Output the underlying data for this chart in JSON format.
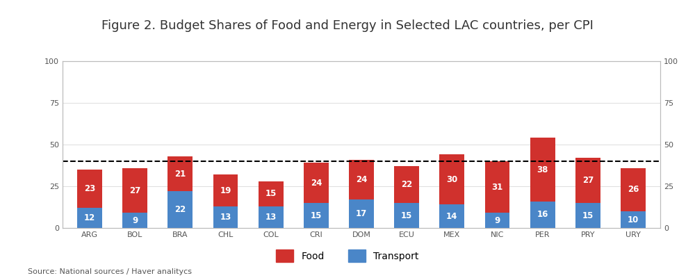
{
  "title": "Figure 2. Budget Shares of Food and Energy in Selected LAC countries, per CPI",
  "countries": [
    "ARG",
    "BOL",
    "BRA",
    "CHL",
    "COL",
    "CRI",
    "DOM",
    "ECU",
    "MEX",
    "NIC",
    "PER",
    "PRY",
    "URY"
  ],
  "food": [
    23,
    27,
    21,
    19,
    15,
    24,
    24,
    22,
    30,
    31,
    38,
    27,
    26
  ],
  "transport": [
    12,
    9,
    22,
    13,
    13,
    15,
    17,
    15,
    14,
    9,
    16,
    15,
    10
  ],
  "food_color": "#D0312D",
  "transport_color": "#4A86C8",
  "dashed_line_y": 40,
  "ylim": [
    0,
    100
  ],
  "yticks": [
    0,
    25,
    50,
    75,
    100
  ],
  "bar_width": 0.55,
  "source_text": "Source: National sources / Haver analitycs",
  "legend_food_label": "Food",
  "legend_transport_label": "Transport",
  "title_fontsize": 13,
  "label_fontsize": 8.5,
  "tick_fontsize": 8,
  "source_fontsize": 8,
  "background_color": "#FFFFFF",
  "spine_color": "#BBBBBB",
  "grid_color": "#DDDDDD"
}
